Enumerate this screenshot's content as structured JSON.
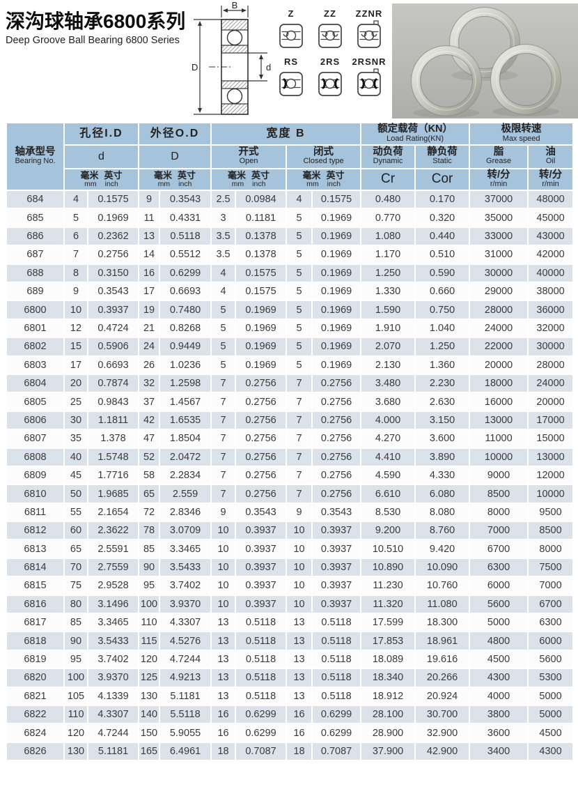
{
  "page": {
    "title_zh": "深沟球轴承6800系列",
    "title_en": "Deep Groove Ball Bearing 6800 Series"
  },
  "diagram": {
    "dim_width": "B",
    "dim_outer": "D",
    "dim_bore": "d",
    "variants": [
      {
        "label": "Z",
        "icon": "shield-left"
      },
      {
        "label": "ZZ",
        "icon": "shield-both"
      },
      {
        "label": "ZZNR",
        "icon": "shield-both-snap-ring"
      },
      {
        "label": "RS",
        "icon": "seal-left"
      },
      {
        "label": "2RS",
        "icon": "seal-both"
      },
      {
        "label": "2RSNR",
        "icon": "seal-both-snap-ring"
      }
    ]
  },
  "colors": {
    "header_bg": "#a6c3dc",
    "row_alt_bg": "#dbe2ea",
    "row_bg": "#fcfcfd",
    "grid_line": "#ffffff",
    "text": "#3a3a3a"
  },
  "table": {
    "header": {
      "bearing_no_zh": "轴承型号",
      "bearing_no_en": "Bearing No.",
      "bore_zh": "孔径I.D",
      "bore_sym": "d",
      "od_zh": "外径O.D",
      "od_sym": "D",
      "width_zh": "宽度  B",
      "open_zh": "开式",
      "open_en": "Open",
      "closed_zh": "闭式",
      "closed_en": "Closed type",
      "mm_zh": "毫米",
      "mm_en": "mm",
      "inch_zh": "英寸",
      "inch_en": "inch",
      "load_zh": "额定载荷（KN）",
      "load_en": "Load Rating(KN)",
      "dynamic_zh": "动负荷",
      "dynamic_en": "Dynamic",
      "cr": "Cr",
      "static_zh": "静负荷",
      "static_en": "Static",
      "cor": "Cor",
      "speed_zh": "极限转速",
      "speed_en": "Max speed",
      "grease_zh": "脂",
      "grease_en": "Grease",
      "oil_zh": "油",
      "oil_en": "Oil",
      "rpm_zh": "转/分",
      "rpm_en": "r/min"
    },
    "rows": [
      [
        "684",
        "4",
        "0.1575",
        "9",
        "0.3543",
        "2.5",
        "0.0984",
        "4",
        "0.1575",
        "0.480",
        "0.170",
        "37000",
        "48000"
      ],
      [
        "685",
        "5",
        "0.1969",
        "11",
        "0.4331",
        "3",
        "0.1181",
        "5",
        "0.1969",
        "0.770",
        "0.320",
        "35000",
        "45000"
      ],
      [
        "686",
        "6",
        "0.2362",
        "13",
        "0.5118",
        "3.5",
        "0.1378",
        "5",
        "0.1969",
        "1.080",
        "0.440",
        "33000",
        "43000"
      ],
      [
        "687",
        "7",
        "0.2756",
        "14",
        "0.5512",
        "3.5",
        "0.1378",
        "5",
        "0.1969",
        "1.170",
        "0.510",
        "31000",
        "42000"
      ],
      [
        "688",
        "8",
        "0.3150",
        "16",
        "0.6299",
        "4",
        "0.1575",
        "5",
        "0.1969",
        "1.250",
        "0.590",
        "30000",
        "40000"
      ],
      [
        "689",
        "9",
        "0.3543",
        "17",
        "0.6693",
        "4",
        "0.1575",
        "5",
        "0.1969",
        "1.330",
        "0.660",
        "29000",
        "38000"
      ],
      [
        "6800",
        "10",
        "0.3937",
        "19",
        "0.7480",
        "5",
        "0.1969",
        "5",
        "0.1969",
        "1.590",
        "0.750",
        "28000",
        "36000"
      ],
      [
        "6801",
        "12",
        "0.4724",
        "21",
        "0.8268",
        "5",
        "0.1969",
        "5",
        "0.1969",
        "1.910",
        "1.040",
        "24000",
        "32000"
      ],
      [
        "6802",
        "15",
        "0.5906",
        "24",
        "0.9449",
        "5",
        "0.1969",
        "5",
        "0.1969",
        "2.070",
        "1.250",
        "22000",
        "30000"
      ],
      [
        "6803",
        "17",
        "0.6693",
        "26",
        "1.0236",
        "5",
        "0.1969",
        "5",
        "0.1969",
        "2.130",
        "1.360",
        "20000",
        "28000"
      ],
      [
        "6804",
        "20",
        "0.7874",
        "32",
        "1.2598",
        "7",
        "0.2756",
        "7",
        "0.2756",
        "3.480",
        "2.230",
        "18000",
        "24000"
      ],
      [
        "6805",
        "25",
        "0.9843",
        "37",
        "1.4567",
        "7",
        "0.2756",
        "7",
        "0.2756",
        "3.680",
        "2.630",
        "16000",
        "20000"
      ],
      [
        "6806",
        "30",
        "1.1811",
        "42",
        "1.6535",
        "7",
        "0.2756",
        "7",
        "0.2756",
        "4.000",
        "3.150",
        "13000",
        "17000"
      ],
      [
        "6807",
        "35",
        "1.378",
        "47",
        "1.8504",
        "7",
        "0.2756",
        "7",
        "0.2756",
        "4.270",
        "3.600",
        "11000",
        "15000"
      ],
      [
        "6808",
        "40",
        "1.5748",
        "52",
        "2.0472",
        "7",
        "0.2756",
        "7",
        "0.2756",
        "4.410",
        "3.890",
        "10000",
        "13000"
      ],
      [
        "6809",
        "45",
        "1.7716",
        "58",
        "2.2834",
        "7",
        "0.2756",
        "7",
        "0.2756",
        "4.590",
        "4.330",
        "9000",
        "12000"
      ],
      [
        "6810",
        "50",
        "1.9685",
        "65",
        "2.559",
        "7",
        "0.2756",
        "7",
        "0.2756",
        "6.610",
        "6.080",
        "8500",
        "10000"
      ],
      [
        "6811",
        "55",
        "2.1654",
        "72",
        "2.8346",
        "9",
        "0.3543",
        "9",
        "0.3543",
        "8.530",
        "8.080",
        "8000",
        "9500"
      ],
      [
        "6812",
        "60",
        "2.3622",
        "78",
        "3.0709",
        "10",
        "0.3937",
        "10",
        "0.3937",
        "9.200",
        "8.760",
        "7000",
        "8500"
      ],
      [
        "6813",
        "65",
        "2.5591",
        "85",
        "3.3465",
        "10",
        "0.3937",
        "10",
        "0.3937",
        "10.510",
        "9.420",
        "6700",
        "8000"
      ],
      [
        "6814",
        "70",
        "2.7559",
        "90",
        "3.5433",
        "10",
        "0.3937",
        "10",
        "0.3937",
        "10.890",
        "10.090",
        "6300",
        "7500"
      ],
      [
        "6815",
        "75",
        "2.9528",
        "95",
        "3.7402",
        "10",
        "0.3937",
        "10",
        "0.3937",
        "11.230",
        "10.760",
        "6000",
        "7000"
      ],
      [
        "6816",
        "80",
        "3.1496",
        "100",
        "3.9370",
        "10",
        "0.3937",
        "10",
        "0.3937",
        "11.320",
        "11.080",
        "5600",
        "6700"
      ],
      [
        "6817",
        "85",
        "3.3465",
        "110",
        "4.3307",
        "13",
        "0.5118",
        "13",
        "0.5118",
        "17.599",
        "18.300",
        "5000",
        "6300"
      ],
      [
        "6818",
        "90",
        "3.5433",
        "115",
        "4.5276",
        "13",
        "0.5118",
        "13",
        "0.5118",
        "17.853",
        "18.961",
        "4800",
        "6000"
      ],
      [
        "6819",
        "95",
        "3.7402",
        "120",
        "4.7244",
        "13",
        "0.5118",
        "13",
        "0.5118",
        "18.089",
        "19.616",
        "4500",
        "5600"
      ],
      [
        "6820",
        "100",
        "3.9370",
        "125",
        "4.9213",
        "13",
        "0.5118",
        "13",
        "0.5118",
        "18.340",
        "20.266",
        "4300",
        "5300"
      ],
      [
        "6821",
        "105",
        "4.1339",
        "130",
        "5.1181",
        "13",
        "0.5118",
        "13",
        "0.5118",
        "18.912",
        "20.924",
        "4000",
        "5000"
      ],
      [
        "6822",
        "110",
        "4.3307",
        "140",
        "5.5118",
        "16",
        "0.6299",
        "16",
        "0.6299",
        "28.100",
        "30.700",
        "3800",
        "5000"
      ],
      [
        "6824",
        "120",
        "4.7244",
        "150",
        "5.9055",
        "16",
        "0.6299",
        "16",
        "0.6299",
        "28.900",
        "32.900",
        "3600",
        "4500"
      ],
      [
        "6826",
        "130",
        "5.1181",
        "165",
        "6.4961",
        "18",
        "0.7087",
        "18",
        "0.7087",
        "37.900",
        "42.900",
        "3400",
        "4300"
      ]
    ]
  }
}
